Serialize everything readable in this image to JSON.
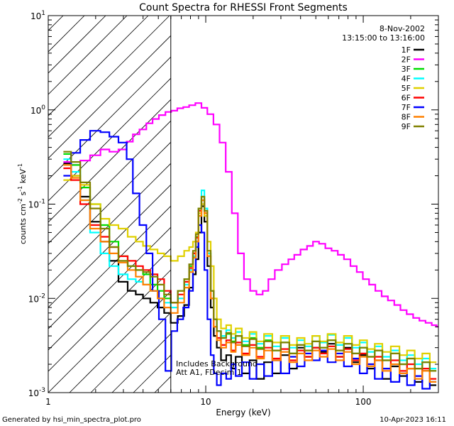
{
  "chart_data": {
    "type": "line",
    "title": "Count Spectra for RHESSI Front Segments",
    "xlabel": "Energy (keV)",
    "ylabel_parts": {
      "base": "counts cm",
      "exp1": "-2",
      "mid": " s",
      "exp2": "-1",
      "unit": " keV",
      "exp3": "-1"
    },
    "xscale": "log",
    "yscale": "log",
    "xlim": [
      1,
      300
    ],
    "ylim": [
      0.001,
      10
    ],
    "x_ticks": [
      {
        "value": 1,
        "label": "1"
      },
      {
        "value": 10,
        "label": "10"
      },
      {
        "value": 100,
        "label": "100"
      }
    ],
    "y_ticks": [
      {
        "value": 0.001,
        "base": "10",
        "exp": "-3"
      },
      {
        "value": 0.01,
        "base": "10",
        "exp": "-2"
      },
      {
        "value": 0.1,
        "base": "10",
        "exp": "-1"
      },
      {
        "value": 1,
        "base": "10",
        "exp": "0"
      },
      {
        "value": 10,
        "base": "10",
        "exp": "1"
      }
    ],
    "hatched_region_kev": [
      1,
      6
    ],
    "header": {
      "date": "8-Nov-2002",
      "time_range": "13:15:00 to 13:16:00"
    },
    "annotation": [
      "Includes Background",
      "Att A1, FDecim 1"
    ],
    "footer": {
      "left": "Generated by hsi_min_spectra_plot.pro",
      "right": "10-Apr-2023 16:11"
    },
    "legend_position": "top-right",
    "series": [
      {
        "name": "1F",
        "color": "#000000",
        "x": [
          1.3,
          1.5,
          1.7,
          2.0,
          2.3,
          2.6,
          3.0,
          3.4,
          3.8,
          4.2,
          4.7,
          5.2,
          5.7,
          6.3,
          7.0,
          7.6,
          8.1,
          8.5,
          8.8,
          9.2,
          9.6,
          10.0,
          10.5,
          11,
          11.5,
          12,
          13,
          14,
          15,
          16,
          18,
          20,
          22,
          25,
          28,
          32,
          36,
          40,
          45,
          50,
          56,
          63,
          71,
          80,
          90,
          100,
          112,
          125,
          140,
          160,
          180,
          200,
          225,
          250,
          280
        ],
        "y": [
          0.27,
          0.2,
          0.12,
          0.065,
          0.04,
          0.025,
          0.015,
          0.012,
          0.011,
          0.01,
          0.009,
          0.008,
          0.007,
          0.0055,
          0.0065,
          0.0085,
          0.013,
          0.018,
          0.026,
          0.05,
          0.095,
          0.065,
          0.022,
          0.008,
          0.004,
          0.003,
          0.0022,
          0.0025,
          0.0018,
          0.0024,
          0.0016,
          0.0022,
          0.0014,
          0.0021,
          0.0016,
          0.0025,
          0.0018,
          0.003,
          0.0024,
          0.003,
          0.0027,
          0.0033,
          0.0024,
          0.003,
          0.0021,
          0.0025,
          0.0018,
          0.0022,
          0.0014,
          0.0019,
          0.0015,
          0.0018,
          0.0013,
          0.0017,
          0.0012
        ]
      },
      {
        "name": "2F",
        "color": "#ff00ff",
        "x": [
          1.3,
          1.5,
          1.7,
          2.0,
          2.3,
          2.6,
          3.0,
          3.3,
          3.6,
          4.0,
          4.4,
          4.8,
          5.3,
          5.8,
          6.3,
          6.9,
          7.5,
          8.2,
          9.0,
          9.8,
          10.7,
          11.7,
          12.8,
          14,
          15.3,
          16.7,
          18.3,
          20,
          22,
          24,
          26,
          29,
          32,
          35,
          38,
          42,
          46,
          50,
          55,
          60,
          66,
          72,
          79,
          87,
          95,
          104,
          114,
          125,
          137,
          150,
          165,
          180,
          198,
          217,
          238,
          260,
          285,
          300
        ],
        "y": [
          0.28,
          0.26,
          0.29,
          0.33,
          0.38,
          0.36,
          0.38,
          0.46,
          0.55,
          0.62,
          0.72,
          0.8,
          0.88,
          0.95,
          0.98,
          1.04,
          1.07,
          1.12,
          1.18,
          1.05,
          0.9,
          0.7,
          0.45,
          0.22,
          0.08,
          0.03,
          0.016,
          0.012,
          0.011,
          0.012,
          0.016,
          0.02,
          0.023,
          0.026,
          0.029,
          0.033,
          0.036,
          0.04,
          0.038,
          0.034,
          0.032,
          0.029,
          0.026,
          0.022,
          0.019,
          0.016,
          0.014,
          0.012,
          0.0105,
          0.0095,
          0.0085,
          0.0075,
          0.0068,
          0.0062,
          0.0058,
          0.0055,
          0.0052,
          0.005
        ]
      },
      {
        "name": "3F",
        "color": "#00dd00",
        "x": [
          1.3,
          1.5,
          1.7,
          2.0,
          2.3,
          2.6,
          3.0,
          3.4,
          3.8,
          4.2,
          4.7,
          5.2,
          5.7,
          6.3,
          7.0,
          7.6,
          8.1,
          8.5,
          8.8,
          9.2,
          9.6,
          10.0,
          10.5,
          11,
          11.5,
          12,
          13,
          14,
          15,
          16,
          18,
          20,
          22,
          25,
          28,
          32,
          36,
          40,
          45,
          50,
          56,
          63,
          71,
          80,
          90,
          100,
          112,
          125,
          140,
          160,
          180,
          200,
          225,
          250,
          280
        ],
        "y": [
          0.34,
          0.26,
          0.15,
          0.1,
          0.06,
          0.04,
          0.028,
          0.022,
          0.02,
          0.018,
          0.014,
          0.012,
          0.01,
          0.009,
          0.012,
          0.016,
          0.022,
          0.03,
          0.045,
          0.09,
          0.12,
          0.08,
          0.03,
          0.012,
          0.006,
          0.0045,
          0.0038,
          0.0042,
          0.0035,
          0.004,
          0.0032,
          0.0038,
          0.003,
          0.0036,
          0.0028,
          0.0034,
          0.0026,
          0.0032,
          0.0028,
          0.0035,
          0.003,
          0.0036,
          0.0028,
          0.0033,
          0.0026,
          0.003,
          0.0024,
          0.0028,
          0.0022,
          0.0026,
          0.002,
          0.0023,
          0.0018,
          0.0021,
          0.0017
        ]
      },
      {
        "name": "4F",
        "color": "#00ffff",
        "x": [
          1.3,
          1.5,
          1.7,
          2.0,
          2.3,
          2.6,
          3.0,
          3.4,
          3.8,
          4.2,
          4.7,
          5.2,
          5.7,
          6.3,
          7.0,
          7.6,
          8.1,
          8.5,
          8.8,
          9.2,
          9.6,
          10.0,
          10.5,
          11,
          11.5,
          12,
          13,
          14,
          15,
          16,
          18,
          20,
          22,
          25,
          28,
          32,
          36,
          40,
          45,
          50,
          56,
          63,
          71,
          80,
          90,
          100,
          112,
          125,
          140,
          160,
          180,
          200,
          225,
          250,
          280
        ],
        "y": [
          0.3,
          0.22,
          0.11,
          0.05,
          0.03,
          0.022,
          0.018,
          0.016,
          0.015,
          0.014,
          0.012,
          0.01,
          0.009,
          0.008,
          0.01,
          0.014,
          0.02,
          0.028,
          0.04,
          0.085,
          0.14,
          0.09,
          0.03,
          0.012,
          0.006,
          0.0045,
          0.004,
          0.0046,
          0.0038,
          0.0044,
          0.0035,
          0.0042,
          0.0033,
          0.004,
          0.0031,
          0.0038,
          0.003,
          0.0036,
          0.0031,
          0.004,
          0.0034,
          0.0041,
          0.0032,
          0.0038,
          0.003,
          0.0034,
          0.0027,
          0.0031,
          0.0024,
          0.0028,
          0.0022,
          0.0025,
          0.002,
          0.0023,
          0.0018
        ]
      },
      {
        "name": "5F",
        "color": "#e0d000",
        "x": [
          1.3,
          1.5,
          1.7,
          2.0,
          2.3,
          2.6,
          3.0,
          3.4,
          3.8,
          4.2,
          4.7,
          5.2,
          5.7,
          6.3,
          7.0,
          7.6,
          8.1,
          8.5,
          8.8,
          9.2,
          9.6,
          10.0,
          10.5,
          11,
          11.5,
          12,
          13,
          14,
          15,
          16,
          18,
          20,
          22,
          25,
          28,
          32,
          36,
          40,
          45,
          50,
          56,
          63,
          71,
          80,
          90,
          100,
          112,
          125,
          140,
          160,
          180,
          200,
          225,
          250,
          280
        ],
        "y": [
          0.18,
          0.2,
          0.16,
          0.1,
          0.07,
          0.06,
          0.055,
          0.045,
          0.04,
          0.036,
          0.033,
          0.03,
          0.028,
          0.025,
          0.028,
          0.032,
          0.035,
          0.04,
          0.05,
          0.08,
          0.1,
          0.075,
          0.04,
          0.022,
          0.01,
          0.006,
          0.0048,
          0.0052,
          0.0042,
          0.0048,
          0.0038,
          0.0044,
          0.0035,
          0.0042,
          0.0034,
          0.004,
          0.0032,
          0.0038,
          0.0033,
          0.004,
          0.0035,
          0.0042,
          0.0034,
          0.004,
          0.0032,
          0.0036,
          0.0029,
          0.0033,
          0.0027,
          0.0031,
          0.0025,
          0.0028,
          0.0023,
          0.0026,
          0.0021
        ]
      },
      {
        "name": "6F",
        "color": "#ff0000",
        "x": [
          1.3,
          1.5,
          1.7,
          2.0,
          2.3,
          2.6,
          3.0,
          3.4,
          3.8,
          4.2,
          4.7,
          5.2,
          5.7,
          6.3,
          7.0,
          7.6,
          8.1,
          8.5,
          8.8,
          9.2,
          9.6,
          10.0,
          10.5,
          11,
          11.5,
          12,
          13,
          14,
          15,
          16,
          18,
          20,
          22,
          25,
          28,
          32,
          36,
          40,
          45,
          50,
          56,
          63,
          71,
          80,
          90,
          100,
          112,
          125,
          140,
          160,
          180,
          200,
          225,
          250,
          280
        ],
        "y": [
          0.24,
          0.18,
          0.1,
          0.06,
          0.045,
          0.035,
          0.028,
          0.025,
          0.022,
          0.02,
          0.018,
          0.016,
          0.012,
          0.009,
          0.011,
          0.015,
          0.021,
          0.03,
          0.044,
          0.085,
          0.11,
          0.08,
          0.028,
          0.01,
          0.005,
          0.0038,
          0.0032,
          0.0036,
          0.0028,
          0.0034,
          0.0026,
          0.0032,
          0.0024,
          0.003,
          0.0023,
          0.0029,
          0.0022,
          0.0028,
          0.0024,
          0.003,
          0.0026,
          0.0031,
          0.0024,
          0.0029,
          0.0022,
          0.0026,
          0.002,
          0.0024,
          0.0018,
          0.0022,
          0.0017,
          0.002,
          0.0015,
          0.0018,
          0.0014
        ]
      },
      {
        "name": "7F",
        "color": "#0000ff",
        "x": [
          1.3,
          1.5,
          1.7,
          2.0,
          2.3,
          2.6,
          3.0,
          3.3,
          3.6,
          4.0,
          4.4,
          4.8,
          5.3,
          5.8,
          6.3,
          6.9,
          7.5,
          8.1,
          8.5,
          8.8,
          9.2,
          9.6,
          10.0,
          10.5,
          11,
          11.5,
          12,
          13,
          14,
          15,
          16,
          18,
          20,
          22,
          25,
          28,
          32,
          36,
          40,
          45,
          50,
          56,
          63,
          71,
          80,
          90,
          100,
          112,
          125,
          140,
          160,
          180,
          200,
          225,
          250,
          280
        ],
        "y": [
          0.2,
          0.35,
          0.48,
          0.6,
          0.58,
          0.52,
          0.45,
          0.3,
          0.13,
          0.06,
          0.03,
          0.012,
          0.006,
          0.0017,
          0.0045,
          0.006,
          0.008,
          0.012,
          0.02,
          0.035,
          0.06,
          0.05,
          0.02,
          0.006,
          0.0025,
          0.0016,
          0.0012,
          0.0016,
          0.0014,
          0.002,
          0.0015,
          0.0021,
          0.0014,
          0.002,
          0.0015,
          0.0022,
          0.0016,
          0.0024,
          0.0019,
          0.0026,
          0.0022,
          0.0028,
          0.0021,
          0.0026,
          0.0019,
          0.0023,
          0.0016,
          0.002,
          0.0014,
          0.0018,
          0.0013,
          0.0016,
          0.0012,
          0.0015,
          0.0011,
          0.0013
        ]
      },
      {
        "name": "8F",
        "color": "#ff8000",
        "x": [
          1.3,
          1.5,
          1.7,
          2.0,
          2.3,
          2.6,
          3.0,
          3.4,
          3.8,
          4.2,
          4.7,
          5.2,
          5.7,
          6.3,
          7.0,
          7.6,
          8.1,
          8.5,
          8.8,
          9.2,
          9.6,
          10.0,
          10.5,
          11,
          11.5,
          12,
          13,
          14,
          15,
          16,
          18,
          20,
          22,
          25,
          28,
          32,
          36,
          40,
          45,
          50,
          56,
          63,
          71,
          80,
          90,
          100,
          112,
          125,
          140,
          160,
          180,
          200,
          225,
          250,
          280
        ],
        "y": [
          0.26,
          0.19,
          0.11,
          0.055,
          0.04,
          0.03,
          0.024,
          0.02,
          0.017,
          0.014,
          0.012,
          0.01,
          0.008,
          0.007,
          0.009,
          0.013,
          0.019,
          0.027,
          0.04,
          0.075,
          0.11,
          0.08,
          0.028,
          0.01,
          0.005,
          0.0036,
          0.003,
          0.0034,
          0.0027,
          0.0032,
          0.0025,
          0.003,
          0.0023,
          0.0028,
          0.0022,
          0.0027,
          0.0021,
          0.0026,
          0.0022,
          0.0028,
          0.0024,
          0.0029,
          0.0022,
          0.0027,
          0.002,
          0.0024,
          0.0019,
          0.0022,
          0.0017,
          0.002,
          0.0016,
          0.0018,
          0.0014,
          0.0017,
          0.0013
        ]
      },
      {
        "name": "9F",
        "color": "#808000",
        "x": [
          1.3,
          1.5,
          1.7,
          2.0,
          2.3,
          2.6,
          3.0,
          3.4,
          3.8,
          4.2,
          4.7,
          5.2,
          5.7,
          6.3,
          7.0,
          7.6,
          8.1,
          8.5,
          8.8,
          9.2,
          9.6,
          10.0,
          10.5,
          11,
          11.5,
          12,
          13,
          14,
          15,
          16,
          18,
          20,
          22,
          25,
          28,
          32,
          36,
          40,
          45,
          50,
          56,
          63,
          71,
          80,
          90,
          100,
          112,
          125,
          140,
          160,
          180,
          200,
          225,
          250,
          280
        ],
        "y": [
          0.36,
          0.28,
          0.17,
          0.09,
          0.055,
          0.035,
          0.025,
          0.022,
          0.02,
          0.019,
          0.017,
          0.014,
          0.011,
          0.009,
          0.012,
          0.016,
          0.023,
          0.032,
          0.048,
          0.09,
          0.12,
          0.085,
          0.032,
          0.012,
          0.006,
          0.0045,
          0.0038,
          0.0043,
          0.0034,
          0.004,
          0.0031,
          0.0037,
          0.0029,
          0.0035,
          0.0028,
          0.0034,
          0.0026,
          0.0032,
          0.0028,
          0.0035,
          0.003,
          0.0036,
          0.0028,
          0.0033,
          0.0026,
          0.003,
          0.0024,
          0.0028,
          0.0022,
          0.0026,
          0.002,
          0.0023,
          0.0018,
          0.0021,
          0.0017
        ]
      }
    ]
  }
}
